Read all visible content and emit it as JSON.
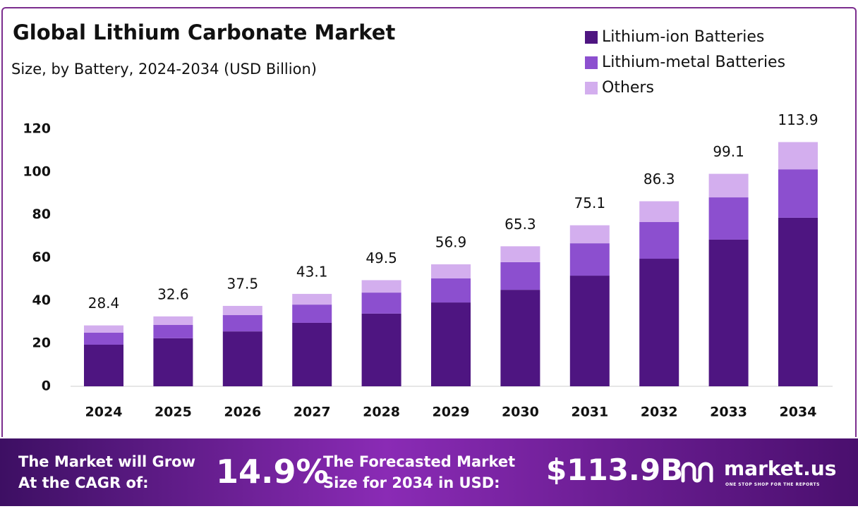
{
  "chart_data": {
    "type": "stacked-bar",
    "title": "Global Lithium Carbonate Market",
    "subtitle": "Size, by Battery, 2024-2034 (USD Billion)",
    "categories": [
      "2024",
      "2025",
      "2026",
      "2027",
      "2028",
      "2029",
      "2030",
      "2031",
      "2032",
      "2033",
      "2034"
    ],
    "series": [
      {
        "name": "Lithium-ion Batteries",
        "color": "#4e1581",
        "values": [
          19.4,
          22.4,
          25.6,
          29.6,
          33.9,
          39.1,
          45.0,
          51.6,
          59.5,
          68.4,
          78.6
        ]
      },
      {
        "name": "Lithium-metal Batteries",
        "color": "#8c4fcf",
        "values": [
          5.6,
          6.2,
          7.6,
          8.5,
          9.8,
          11.2,
          12.9,
          15.1,
          17.1,
          19.7,
          22.6
        ]
      },
      {
        "name": "Others",
        "color": "#d3aeee",
        "values": [
          3.4,
          4.0,
          4.3,
          5.0,
          5.8,
          6.6,
          7.4,
          8.4,
          9.7,
          11.0,
          12.7
        ]
      }
    ],
    "totals": [
      28.4,
      32.6,
      37.5,
      43.1,
      49.5,
      56.9,
      65.3,
      75.1,
      86.3,
      99.1,
      113.9
    ],
    "ylim": [
      0,
      120
    ],
    "yticks": [
      0,
      20,
      40,
      60,
      80,
      100,
      120
    ],
    "grid": false,
    "legend": "top-right"
  },
  "footer": {
    "cagr_text": "The Market will Grow At the CAGR of:",
    "cagr_value": "14.9%",
    "forecast_text": "The Forecasted Market Size for 2034 in USD:",
    "forecast_value": "$113.9B",
    "brand": "market.us",
    "tagline": "ONE STOP SHOP FOR THE REPORTS"
  }
}
